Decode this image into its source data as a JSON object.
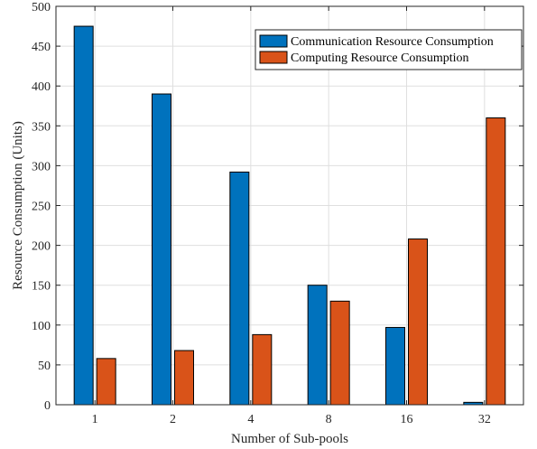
{
  "chart_data": {
    "type": "bar",
    "categories": [
      "1",
      "2",
      "4",
      "8",
      "16",
      "32"
    ],
    "series": [
      {
        "name": "Communication Resource Consumption",
        "color": "#0072BD",
        "values": [
          475,
          390,
          292,
          150,
          97,
          3
        ]
      },
      {
        "name": "Computing Resource Consumption",
        "color": "#D95319",
        "values": [
          58,
          68,
          88,
          130,
          208,
          360
        ]
      }
    ],
    "title": "",
    "xlabel": "Number of Sub-pools",
    "ylabel": "Resource Consumption (Units)",
    "ylim": [
      0,
      500
    ],
    "yticks": [
      0,
      50,
      100,
      150,
      200,
      250,
      300,
      350,
      400,
      450,
      500
    ],
    "grid": true,
    "legend_position": "top-right"
  }
}
